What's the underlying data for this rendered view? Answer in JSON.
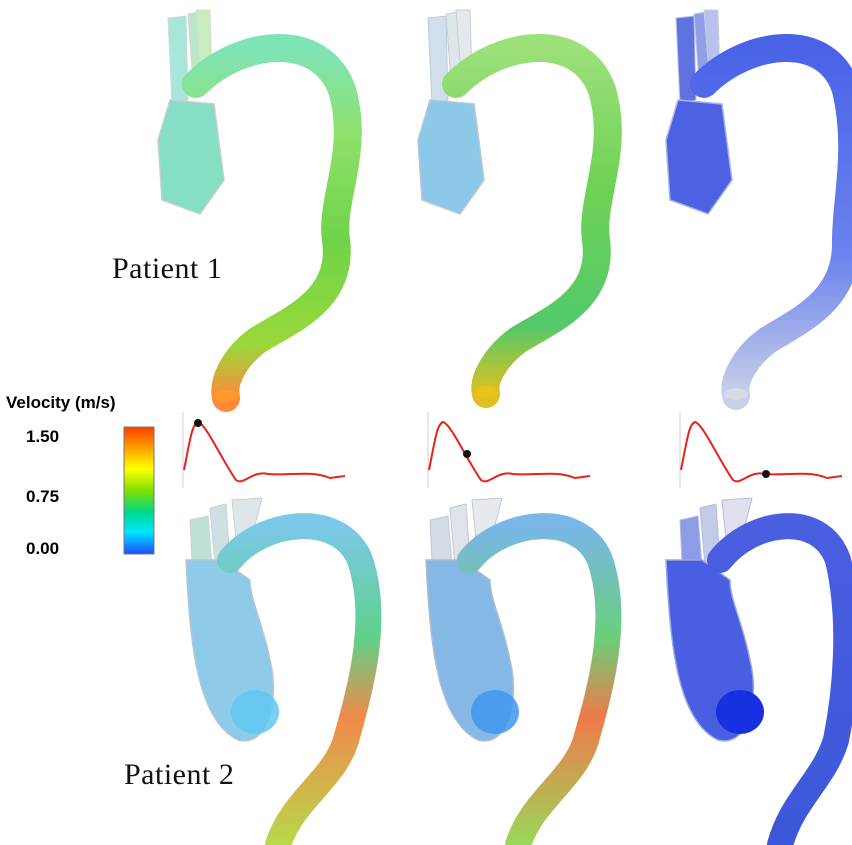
{
  "legend": {
    "title": "Velocity (m/s)",
    "ticks": [
      "1.50",
      "0.75",
      "0.00"
    ],
    "colorbar": [
      "#ff3d00",
      "#ffa300",
      "#ffff00",
      "#7ee000",
      "#00d88a",
      "#00e5ff",
      "#1a4bff"
    ]
  },
  "patients": [
    {
      "label": "Patient 1"
    },
    {
      "label": "Patient 2"
    }
  ],
  "waveform": {
    "line_color": "#e8231c",
    "marker_phases": [
      "peak systole",
      "late systole",
      "diastole"
    ]
  },
  "colors": {
    "low_velocity": "#4a63e6",
    "mid_velocity": "#3fd06a",
    "high_velocity": "#ff5a2a"
  }
}
